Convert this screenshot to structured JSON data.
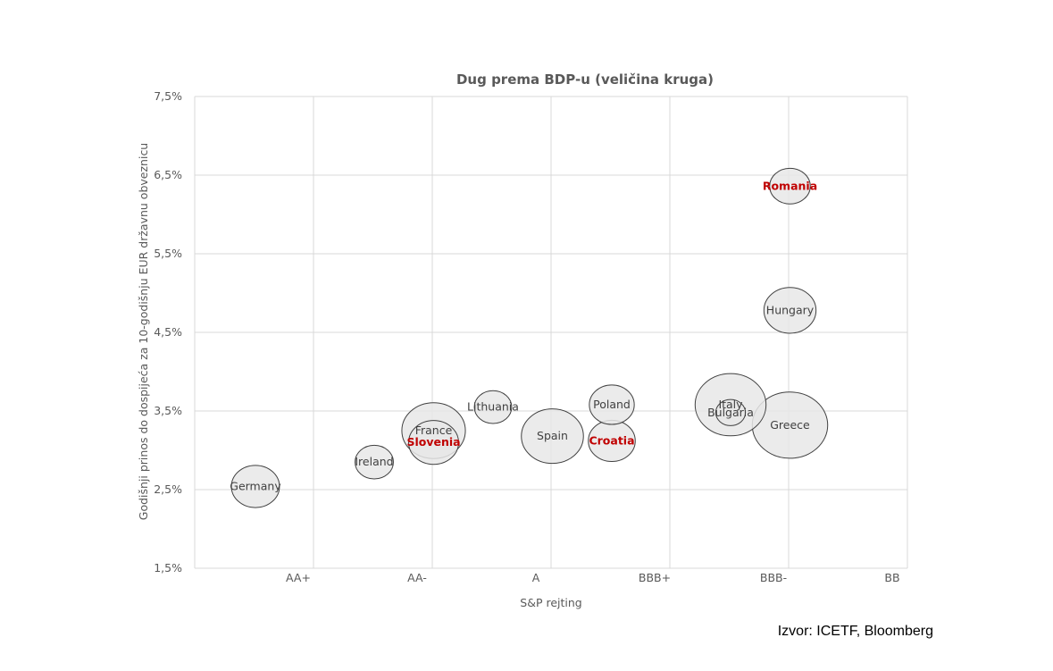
{
  "chart_data": {
    "type": "bubble",
    "title": "Dug prema BDP-u (veličina kruga)",
    "xlabel": "S&P rejting",
    "ylabel": "Godišnji prinos do dospijeća za 10-godišnju EUR državnu obveznicu",
    "categories": [
      "AAA",
      "AA+",
      "AA",
      "AA-",
      "A+",
      "A",
      "A-",
      "BBB+",
      "BBB",
      "BBB-",
      "BB+",
      "BB"
    ],
    "x_tick_labels": [
      {
        "label": "AA+",
        "at": 1
      },
      {
        "label": "AA-",
        "at": 3
      },
      {
        "label": "A",
        "at": 5
      },
      {
        "label": "BBB+",
        "at": 7
      },
      {
        "label": "BBB-",
        "at": 9
      },
      {
        "label": "BB",
        "at": 11
      }
    ],
    "ylim": [
      1.5,
      7.5
    ],
    "y_ticks": [
      "1,5%",
      "2,5%",
      "3,5%",
      "4,5%",
      "5,5%",
      "6,5%",
      "7,5%"
    ],
    "y_tick_values": [
      1.5,
      2.5,
      3.5,
      4.5,
      5.5,
      6.5,
      7.5
    ],
    "grid": true,
    "points": [
      {
        "label": "Germany",
        "rating": "AAA",
        "yield": 2.54,
        "size": 63,
        "highlight": false
      },
      {
        "label": "Ireland",
        "rating": "AA",
        "yield": 2.85,
        "size": 40,
        "highlight": false
      },
      {
        "label": "France",
        "rating": "AA-",
        "yield": 3.25,
        "size": 110,
        "highlight": false
      },
      {
        "label": "Slovenia",
        "rating": "AA-",
        "yield": 3.1,
        "size": 68,
        "highlight": true
      },
      {
        "label": "Lithuania",
        "rating": "A+",
        "yield": 3.55,
        "size": 38,
        "highlight": false
      },
      {
        "label": "Spain",
        "rating": "A",
        "yield": 3.18,
        "size": 105,
        "highlight": false
      },
      {
        "label": "Poland",
        "rating": "A-",
        "yield": 3.58,
        "size": 55,
        "highlight": false
      },
      {
        "label": "Croatia",
        "rating": "A-",
        "yield": 3.12,
        "size": 60,
        "highlight": true
      },
      {
        "label": "Italy",
        "rating": "BBB",
        "yield": 3.58,
        "size": 137,
        "highlight": false
      },
      {
        "label": "Bulgaria",
        "rating": "BBB",
        "yield": 3.48,
        "size": 24,
        "highlight": false
      },
      {
        "label": "Romania",
        "rating": "BBB-",
        "yield": 6.36,
        "size": 45,
        "highlight": true
      },
      {
        "label": "Hungary",
        "rating": "BBB-",
        "yield": 4.78,
        "size": 74,
        "highlight": false
      },
      {
        "label": "Greece",
        "rating": "BBB-",
        "yield": 3.32,
        "size": 155,
        "highlight": false
      }
    ],
    "colors": {
      "bubble_fill": "#e8e8e8",
      "bubble_stroke": "#404040",
      "highlight_text": "#c00000",
      "grid": "#d9d9d9",
      "text": "#595959"
    }
  },
  "source": "Izvor: ICETF, Bloomberg"
}
